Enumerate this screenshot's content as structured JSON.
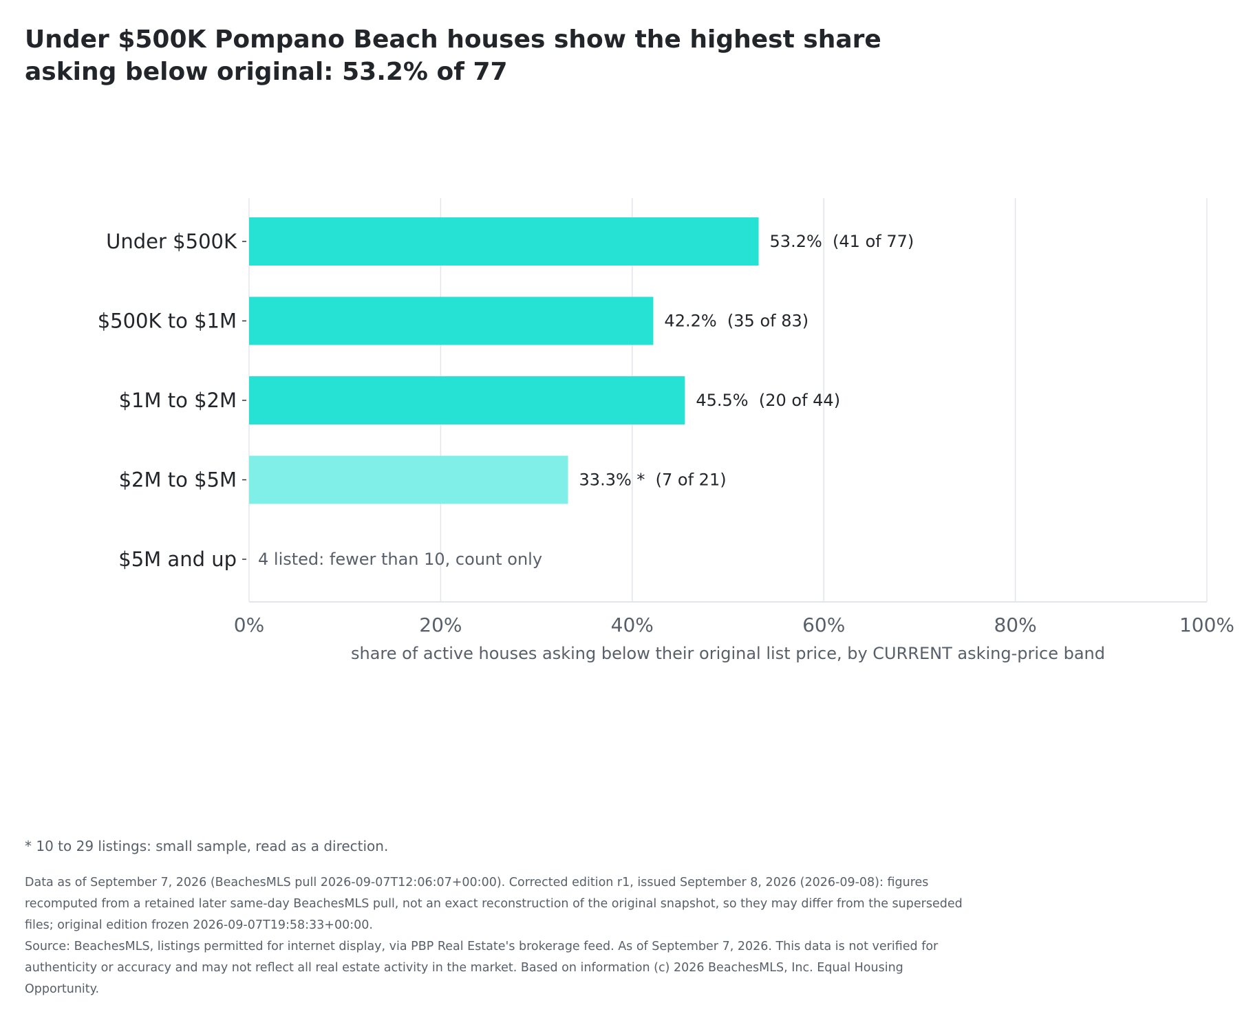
{
  "title": "Under $500K Pompano Beach houses show the highest share asking below original: 53.2% of 77",
  "chart_data": {
    "type": "bar",
    "orientation": "horizontal",
    "categories": [
      "Under $500K",
      "$500K to $1M",
      "$1M to $2M",
      "$2M to $5M",
      "$5M and up"
    ],
    "values": [
      53.2,
      42.2,
      45.5,
      33.3,
      null
    ],
    "labels": [
      "53.2%  (41 of 77)",
      "42.2%  (35 of 83)",
      "45.5%  (20 of 44)",
      "33.3% *  (7 of 21)",
      "4 listed: fewer than 10, count only"
    ],
    "small_sample": [
      false,
      false,
      false,
      true,
      false
    ],
    "xlabel": "share of active houses asking below their original list price, by CURRENT asking-price band",
    "xlim": [
      0,
      100
    ],
    "xticks": [
      "0%",
      "20%",
      "40%",
      "60%",
      "80%",
      "100%"
    ],
    "grid": "vertical",
    "colors": {
      "bar": "#26e2d4",
      "bar_small_sample": "#80efe7",
      "grid": "#e3e5ee",
      "note": "#57606a"
    }
  },
  "footnote": "* 10 to 29 listings: small sample, read as a direction.",
  "notes": {
    "data_as_of": "Data as of September 7, 2026 (BeachesMLS pull 2026-09-07T12:06:07+00:00). Corrected edition r1, issued September 8, 2026 (2026-09-08): figures recomputed from a retained later same-day BeachesMLS pull, not an exact reconstruction of the original snapshot, so they may differ from the superseded files; original edition frozen 2026-09-07T19:58:33+00:00.",
    "source": "Source: BeachesMLS, listings permitted for internet display, via PBP Real Estate's brokerage feed. As of September 7, 2026. This data is not verified for authenticity or accuracy and may not reflect all real estate activity in the market. Based on information (c) 2026 BeachesMLS, Inc. Equal Housing Opportunity."
  }
}
